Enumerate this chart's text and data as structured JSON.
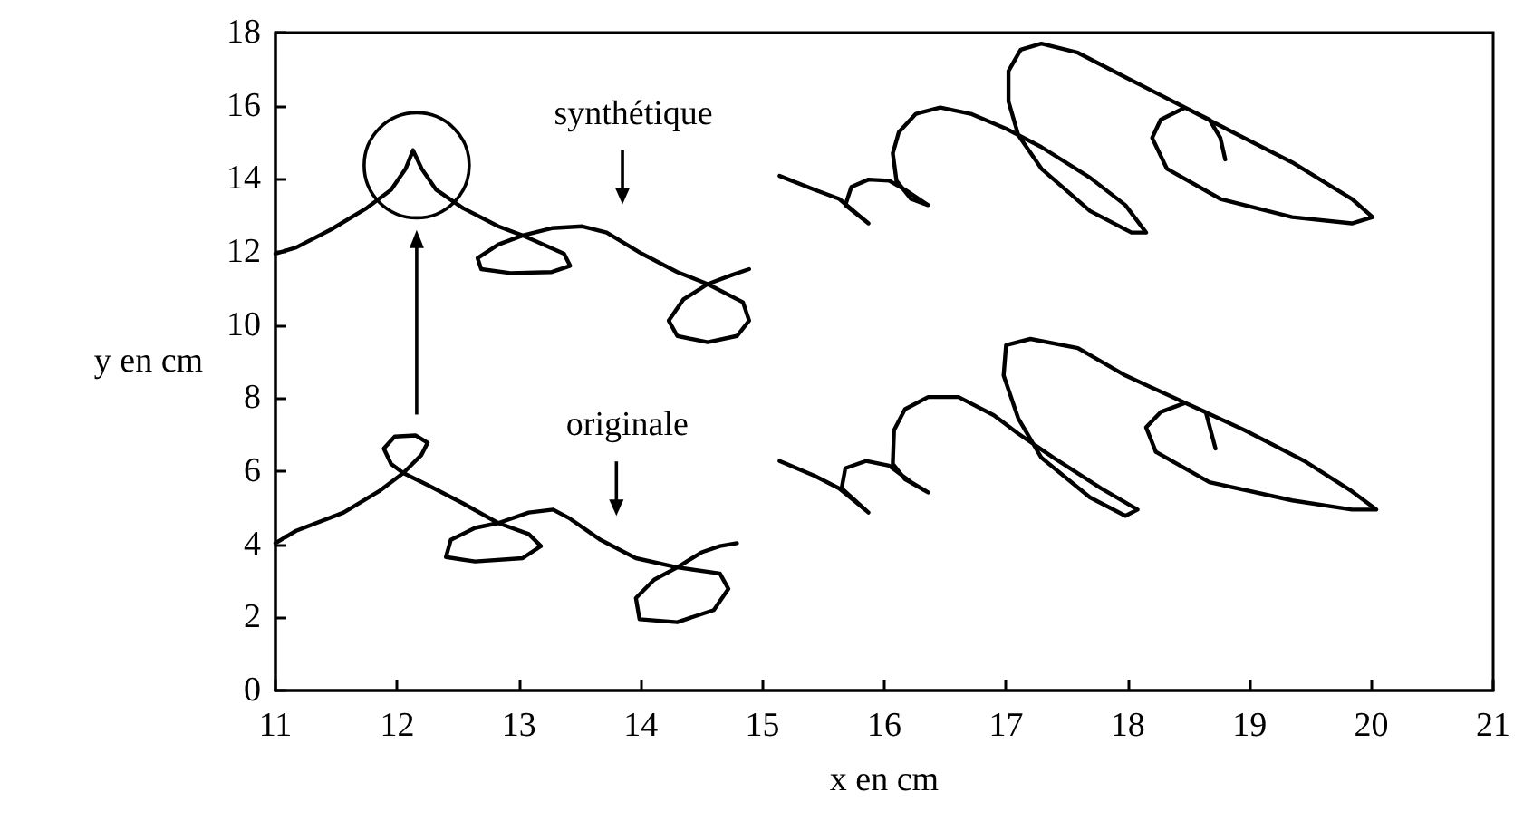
{
  "chart_data": {
    "type": "line",
    "xlabel": "x en cm",
    "ylabel": "y en cm",
    "xlim": [
      11,
      21
    ],
    "xticks": [
      11,
      12,
      13,
      14,
      15,
      16,
      17,
      18,
      19,
      20,
      21
    ],
    "ylim": [
      0,
      18
    ],
    "yticks": [
      0,
      2,
      4,
      6,
      8,
      10,
      12,
      14,
      16,
      18
    ],
    "grid": false,
    "marker": "none",
    "line_style": "solid",
    "annotations": [
      "synthétique",
      "originale"
    ],
    "series": [
      {
        "color": "#000000",
        "x": [
          11.0,
          11.17,
          11.46,
          11.75,
          11.95,
          12.07,
          12.13,
          12.2,
          12.32,
          12.54,
          12.83,
          13.03,
          13.37,
          13.42,
          13.27,
          12.93,
          12.69,
          12.66,
          12.83,
          13.03,
          13.27,
          13.52,
          13.72,
          14.01,
          14.3,
          14.55,
          14.84,
          14.89,
          14.79,
          14.55,
          14.3,
          14.23,
          14.35,
          14.55,
          14.75,
          14.89
        ],
        "values": [
          11.95,
          12.12,
          12.62,
          13.2,
          13.7,
          14.28,
          14.78,
          14.28,
          13.7,
          13.2,
          12.7,
          12.45,
          11.95,
          11.62,
          11.45,
          11.42,
          11.53,
          11.83,
          12.2,
          12.45,
          12.65,
          12.7,
          12.53,
          11.95,
          11.45,
          11.12,
          10.62,
          10.12,
          9.7,
          9.53,
          9.7,
          10.12,
          10.7,
          11.12,
          11.37,
          11.53
        ]
      },
      {
        "color": "#000000",
        "x": [
          15.14,
          15.43,
          15.63,
          15.78,
          15.87,
          15.68,
          15.73,
          15.87,
          16.04,
          16.17,
          16.36,
          16.22,
          16.1,
          16.07,
          16.12,
          16.26,
          16.46,
          16.71,
          17.0,
          17.29,
          17.69,
          17.98,
          18.15,
          18.03,
          17.69,
          17.29,
          17.1,
          17.02,
          17.02,
          17.12,
          17.29,
          17.59,
          17.98,
          18.47,
          18.86,
          19.35,
          19.84,
          20.01,
          19.84,
          19.35,
          18.76,
          18.32,
          18.2,
          18.27,
          18.47,
          18.67,
          18.76,
          18.8
        ],
        "values": [
          14.08,
          13.7,
          13.45,
          13.03,
          12.78,
          13.28,
          13.78,
          13.98,
          13.95,
          13.7,
          13.28,
          13.45,
          13.95,
          14.7,
          15.28,
          15.78,
          15.95,
          15.78,
          15.37,
          14.87,
          14.03,
          13.28,
          12.53,
          12.53,
          13.12,
          14.28,
          15.2,
          16.12,
          16.95,
          17.53,
          17.7,
          17.45,
          16.78,
          15.95,
          15.28,
          14.45,
          13.45,
          12.95,
          12.78,
          12.95,
          13.45,
          14.28,
          15.12,
          15.62,
          15.95,
          15.62,
          15.12,
          14.53
        ]
      },
      {
        "color": "#000000",
        "x": [
          11.0,
          11.17,
          11.56,
          11.85,
          12.05,
          12.2,
          12.25,
          12.15,
          11.98,
          11.89,
          11.95,
          12.05,
          12.25,
          12.54,
          12.83,
          13.08,
          13.18,
          13.03,
          12.64,
          12.4,
          12.44,
          12.64,
          12.83,
          13.08,
          13.28,
          13.42,
          13.67,
          13.96,
          14.3,
          14.65,
          14.72,
          14.6,
          14.3,
          13.99,
          13.96,
          14.11,
          14.3,
          14.5,
          14.65,
          14.79
        ],
        "values": [
          4.03,
          4.37,
          4.87,
          5.45,
          5.95,
          6.45,
          6.78,
          6.98,
          6.95,
          6.62,
          6.2,
          5.95,
          5.62,
          5.12,
          4.58,
          4.28,
          3.95,
          3.62,
          3.53,
          3.65,
          4.12,
          4.45,
          4.58,
          4.87,
          4.95,
          4.7,
          4.12,
          3.62,
          3.37,
          3.2,
          2.78,
          2.2,
          1.87,
          1.95,
          2.53,
          3.03,
          3.37,
          3.78,
          3.95,
          4.03
        ]
      },
      {
        "color": "#000000",
        "x": [
          15.14,
          15.43,
          15.63,
          15.78,
          15.87,
          15.65,
          15.68,
          15.85,
          16.04,
          16.22,
          16.36,
          16.17,
          16.07,
          16.08,
          16.17,
          16.36,
          16.61,
          16.9,
          17.1,
          17.39,
          17.78,
          18.08,
          17.98,
          17.69,
          17.29,
          17.1,
          16.98,
          17.0,
          17.2,
          17.59,
          17.98,
          18.47,
          18.96,
          19.45,
          19.84,
          20.04,
          19.84,
          19.35,
          18.67,
          18.23,
          18.15,
          18.27,
          18.47,
          18.64,
          18.72
        ],
        "values": [
          6.28,
          5.87,
          5.53,
          5.12,
          4.87,
          5.53,
          6.08,
          6.28,
          6.15,
          5.7,
          5.42,
          5.78,
          6.2,
          7.12,
          7.7,
          8.03,
          8.03,
          7.53,
          7.03,
          6.37,
          5.53,
          4.95,
          4.78,
          5.28,
          6.37,
          7.45,
          8.62,
          9.45,
          9.62,
          9.37,
          8.62,
          7.87,
          7.12,
          6.28,
          5.45,
          4.95,
          4.95,
          5.2,
          5.7,
          6.53,
          7.2,
          7.62,
          7.87,
          7.62,
          6.62
        ]
      }
    ]
  }
}
